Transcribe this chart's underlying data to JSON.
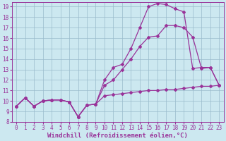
{
  "xlabel": "Windchill (Refroidissement éolien,°C)",
  "bg_color": "#cce8f0",
  "grid_color": "#99bbcc",
  "line_color": "#993399",
  "xlim": [
    -0.5,
    23.5
  ],
  "ylim": [
    8,
    19.4
  ],
  "xticks": [
    0,
    1,
    2,
    3,
    4,
    5,
    6,
    7,
    8,
    9,
    10,
    11,
    12,
    13,
    14,
    15,
    16,
    17,
    18,
    19,
    20,
    21,
    22,
    23
  ],
  "yticks": [
    8,
    9,
    10,
    11,
    12,
    13,
    14,
    15,
    16,
    17,
    18,
    19
  ],
  "series1_x": [
    0,
    1,
    2,
    3,
    4,
    5,
    6,
    7,
    8,
    9,
    10,
    11,
    12,
    13,
    14,
    15,
    16,
    17,
    18,
    19,
    20,
    21,
    22,
    23
  ],
  "series1_y": [
    9.5,
    10.3,
    9.5,
    10.0,
    10.1,
    10.1,
    9.9,
    8.5,
    9.6,
    9.7,
    10.5,
    10.6,
    10.7,
    10.8,
    10.9,
    11.0,
    11.0,
    11.1,
    11.1,
    11.2,
    11.3,
    11.4,
    11.4,
    11.5
  ],
  "series2_x": [
    0,
    1,
    2,
    3,
    4,
    5,
    6,
    7,
    8,
    9,
    10,
    11,
    12,
    13,
    14,
    15,
    16,
    17,
    18,
    19,
    20,
    21,
    22,
    23
  ],
  "series2_y": [
    9.5,
    10.3,
    9.5,
    10.0,
    10.1,
    10.1,
    9.9,
    8.5,
    9.6,
    9.7,
    11.5,
    12.0,
    13.0,
    14.0,
    15.2,
    16.1,
    16.2,
    17.2,
    17.2,
    17.0,
    16.1,
    13.1,
    13.2,
    11.5
  ],
  "series3_x": [
    0,
    1,
    2,
    3,
    4,
    5,
    6,
    7,
    8,
    9,
    10,
    11,
    12,
    13,
    14,
    15,
    16,
    17,
    18,
    19,
    20,
    21,
    22,
    23
  ],
  "series3_y": [
    9.5,
    10.3,
    9.5,
    10.0,
    10.1,
    10.1,
    9.9,
    8.5,
    9.6,
    9.7,
    12.0,
    13.2,
    13.5,
    15.0,
    17.0,
    19.0,
    19.3,
    19.2,
    18.8,
    18.5,
    13.1,
    13.2,
    13.2,
    11.5
  ],
  "marker_size": 2.0,
  "line_width": 0.9,
  "tick_fontsize": 5.5,
  "label_fontsize": 6.5
}
